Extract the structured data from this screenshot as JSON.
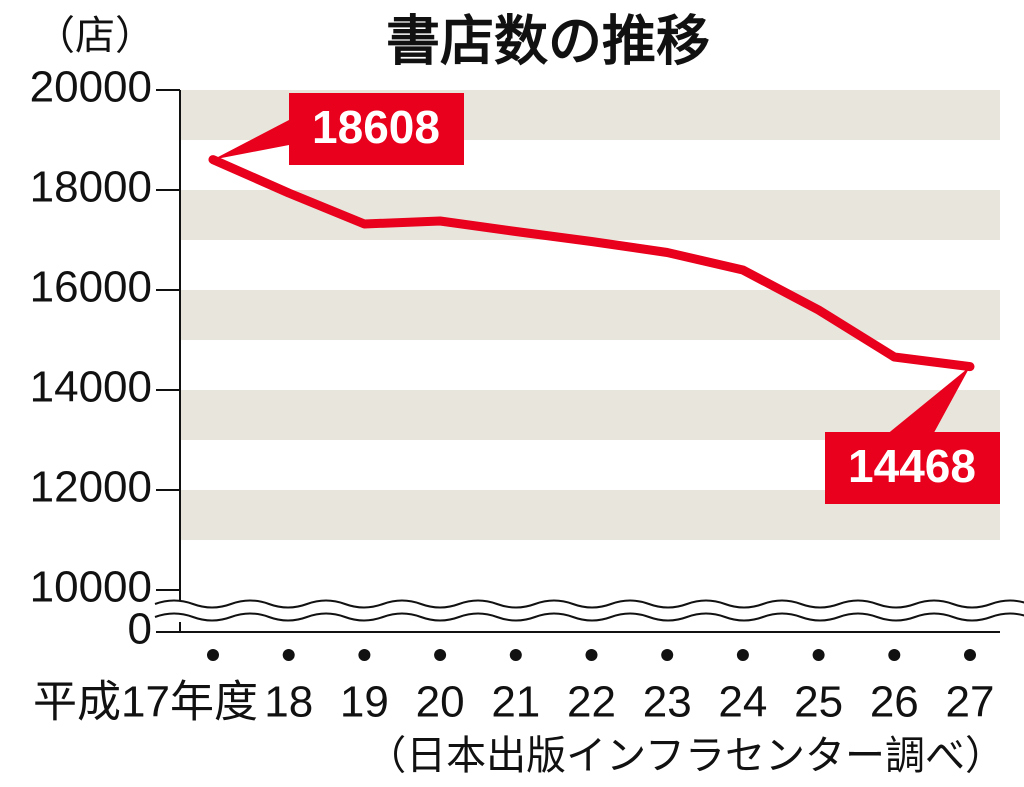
{
  "chart_data": {
    "type": "line",
    "title": "書店数の推移",
    "y_unit": "（店）",
    "source": "（日本出版インフラセンター調べ）",
    "categories": [
      "平成17年度",
      "18",
      "19",
      "20",
      "21",
      "22",
      "23",
      "24",
      "25",
      "26",
      "27"
    ],
    "values": [
      18608,
      17940,
      17320,
      17380,
      17170,
      16970,
      16750,
      16400,
      15600,
      14660,
      14468
    ],
    "color": "#e8001c",
    "ylim": [
      10000,
      20000
    ],
    "yticks": [
      0,
      10000,
      12000,
      14000,
      16000,
      18000,
      20000
    ],
    "axis_break": true,
    "grid": "bands"
  }
}
